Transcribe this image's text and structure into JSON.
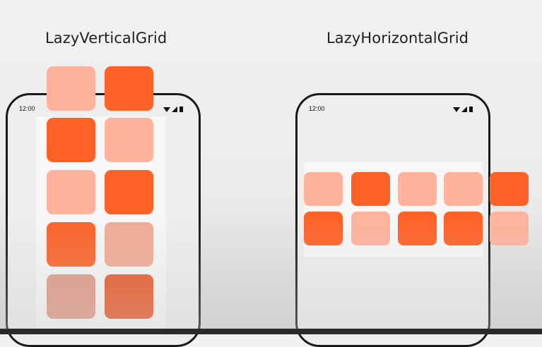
{
  "vertical": {
    "title": "LazyVerticalGrid",
    "status_time": "12:00"
  },
  "horizontal": {
    "title": "LazyHorizontalGrid",
    "status_time": "12:00"
  },
  "colors": {
    "dark_tile": "#ff6126",
    "light_tile": "#ffb39c"
  }
}
